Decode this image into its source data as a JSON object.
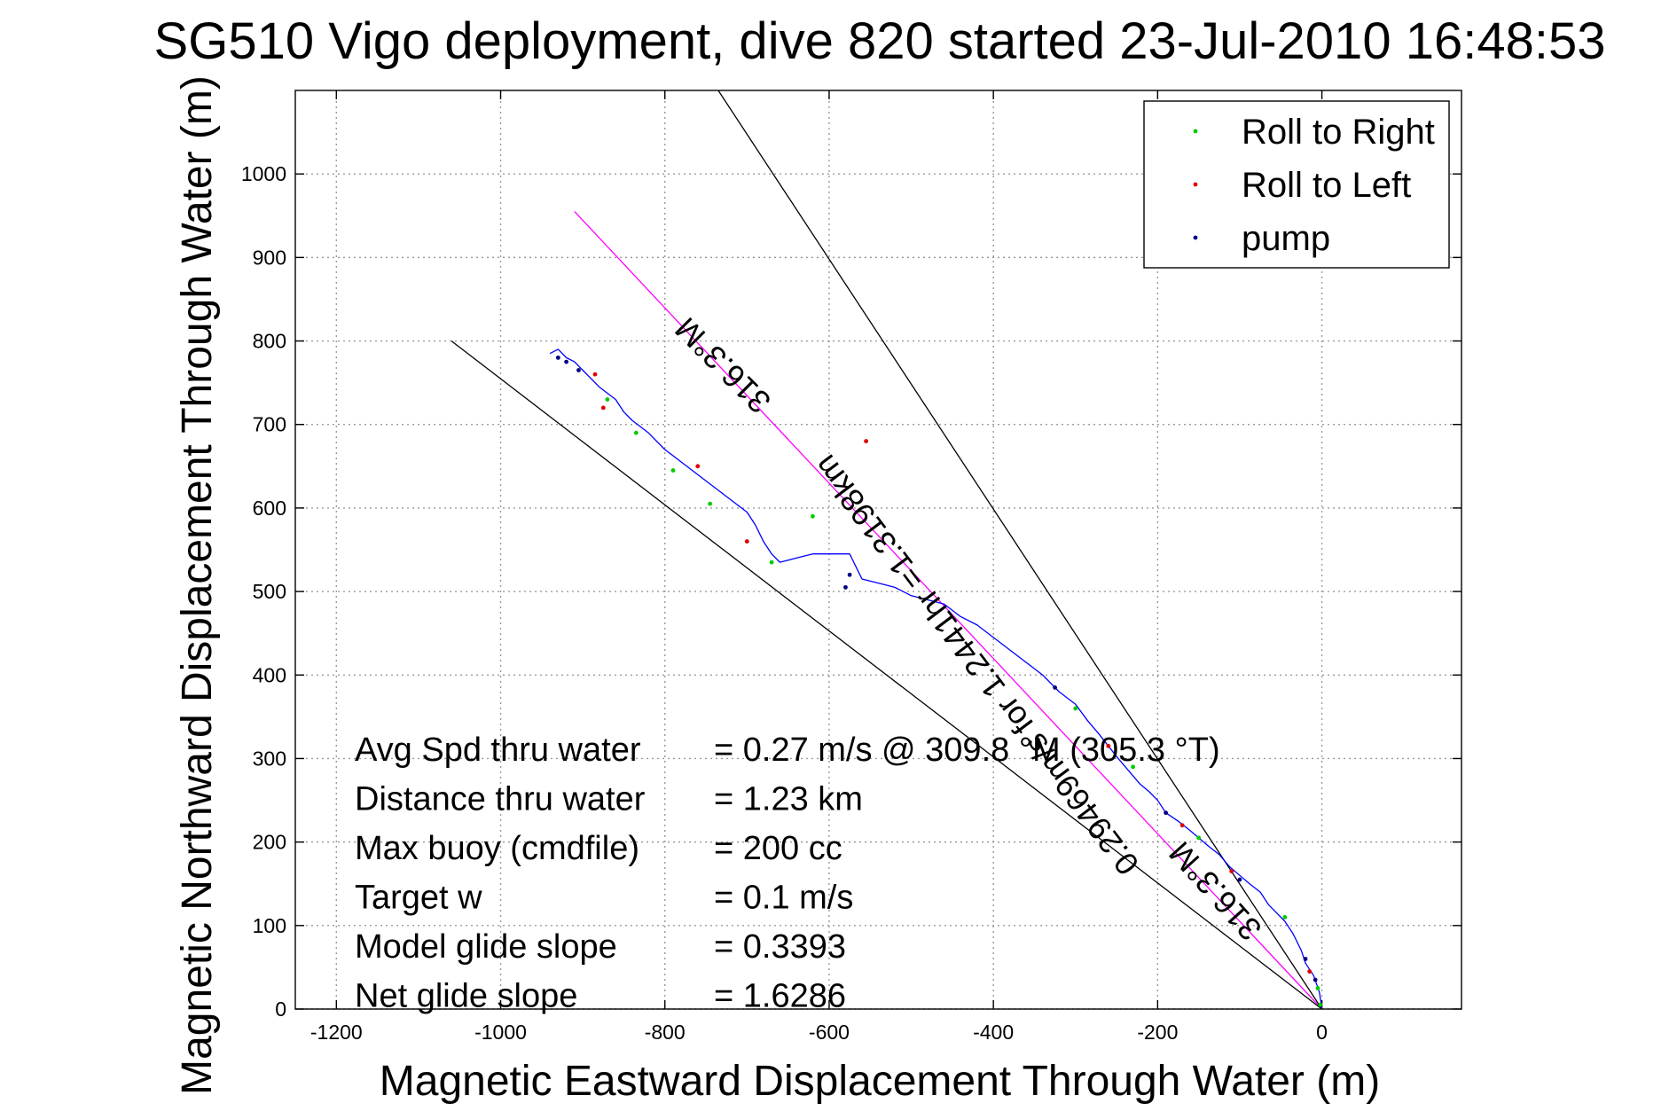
{
  "chart_data": {
    "type": "line",
    "title": "SG510 Vigo deployment, dive 820 started 23-Jul-2010 16:48:53",
    "xlabel": "Magnetic Eastward Displacement Through Water (m)",
    "ylabel": "Magnetic Northward Displacement Through Water (m)",
    "xlim": [
      -1250,
      170
    ],
    "ylim": [
      0,
      1100
    ],
    "xticks": [
      -1200,
      -1000,
      -800,
      -600,
      -400,
      -200,
      0
    ],
    "yticks": [
      0,
      100,
      200,
      300,
      400,
      500,
      600,
      700,
      800,
      900,
      1000
    ],
    "grid": true,
    "legend_position": "top-right",
    "legend": [
      {
        "label": "Roll to Right",
        "color": "#00cc00"
      },
      {
        "label": "Roll to Left",
        "color": "#e00000"
      },
      {
        "label": "pump",
        "color": "#000080"
      }
    ],
    "track": {
      "color": "#0000ff",
      "x": [
        0,
        -3,
        -10,
        -20,
        -25,
        -35,
        -45,
        -55,
        -65,
        -75,
        -88,
        -100,
        -112,
        -125,
        -138,
        -150,
        -162,
        -175,
        -190,
        -200,
        -210,
        -222,
        -235,
        -248,
        -260,
        -272,
        -285,
        -300,
        -320,
        -340,
        -360,
        -380,
        -400,
        -420,
        -440,
        -460,
        -480,
        -500,
        -520,
        -540,
        -560,
        -570,
        -575,
        -580,
        -600,
        -620,
        -640,
        -660,
        -670,
        -680,
        -690,
        -700,
        -720,
        -740,
        -760,
        -780,
        -800,
        -820,
        -840,
        -850,
        -860,
        -880,
        -900,
        -910,
        -920,
        -930,
        -940
      ],
      "y": [
        0,
        20,
        40,
        55,
        70,
        90,
        105,
        115,
        125,
        140,
        150,
        160,
        170,
        185,
        195,
        205,
        215,
        225,
        235,
        250,
        260,
        270,
        285,
        300,
        315,
        330,
        345,
        365,
        380,
        400,
        415,
        430,
        445,
        460,
        470,
        485,
        490,
        495,
        505,
        510,
        515,
        535,
        545,
        545,
        545,
        545,
        540,
        535,
        545,
        560,
        580,
        595,
        610,
        625,
        640,
        655,
        670,
        690,
        705,
        715,
        730,
        745,
        765,
        775,
        780,
        790,
        785
      ],
      "markers": [
        {
          "type": "Roll to Right",
          "x": [
            -2,
            -5,
            -45,
            -150,
            -230,
            -300,
            -620,
            -670,
            -745,
            -790,
            -835,
            -870
          ],
          "y": [
            5,
            25,
            110,
            205,
            290,
            360,
            590,
            535,
            605,
            645,
            690,
            730
          ]
        },
        {
          "type": "Roll to Left",
          "x": [
            -15,
            -110,
            -170,
            -260,
            -555,
            -700,
            -760,
            -875,
            -885
          ],
          "y": [
            45,
            165,
            220,
            315,
            680,
            560,
            650,
            720,
            760
          ]
        },
        {
          "type": "pump",
          "x": [
            -8,
            -20,
            -100,
            -190,
            -325,
            -580,
            -575,
            -905,
            -920,
            -930
          ],
          "y": [
            35,
            60,
            155,
            235,
            385,
            505,
            520,
            765,
            775,
            780
          ]
        }
      ]
    },
    "reference_lines": [
      {
        "label": "316.3°M",
        "color": "#ff00ff",
        "x": [
          0,
          -910
        ],
        "y": [
          0,
          955
        ]
      },
      {
        "label": "",
        "color": "#000000",
        "x": [
          0,
          -1060
        ],
        "y": [
          0,
          800
        ]
      },
      {
        "label": "",
        "color": "#000000",
        "x": [
          0,
          -735
        ],
        "y": [
          0,
          1100
        ]
      }
    ],
    "annotations": [
      {
        "text": "316.3°M",
        "x": -720,
        "y": 780,
        "angle": 45
      },
      {
        "text": "0.29469m/s for 1.2441hr =1.3198km",
        "x": -410,
        "y": 420,
        "angle": 53
      },
      {
        "text": "316.3°M",
        "x": -120,
        "y": 150,
        "angle": 48
      }
    ],
    "stats": [
      {
        "label": "Avg Spd thru water",
        "value": "=  0.27 m/s @ 309.8 °M (305.3 °T)"
      },
      {
        "label": "Distance thru water",
        "value": "=  1.23 km"
      },
      {
        "label": "Max buoy (cmdfile)",
        "value": "= 200 cc"
      },
      {
        "label": "Target w",
        "value": "= 0.1 m/s"
      },
      {
        "label": "Model glide slope",
        "value": "= 0.3393"
      },
      {
        "label": "Net glide slope",
        "value": "= 1.6286"
      }
    ]
  }
}
